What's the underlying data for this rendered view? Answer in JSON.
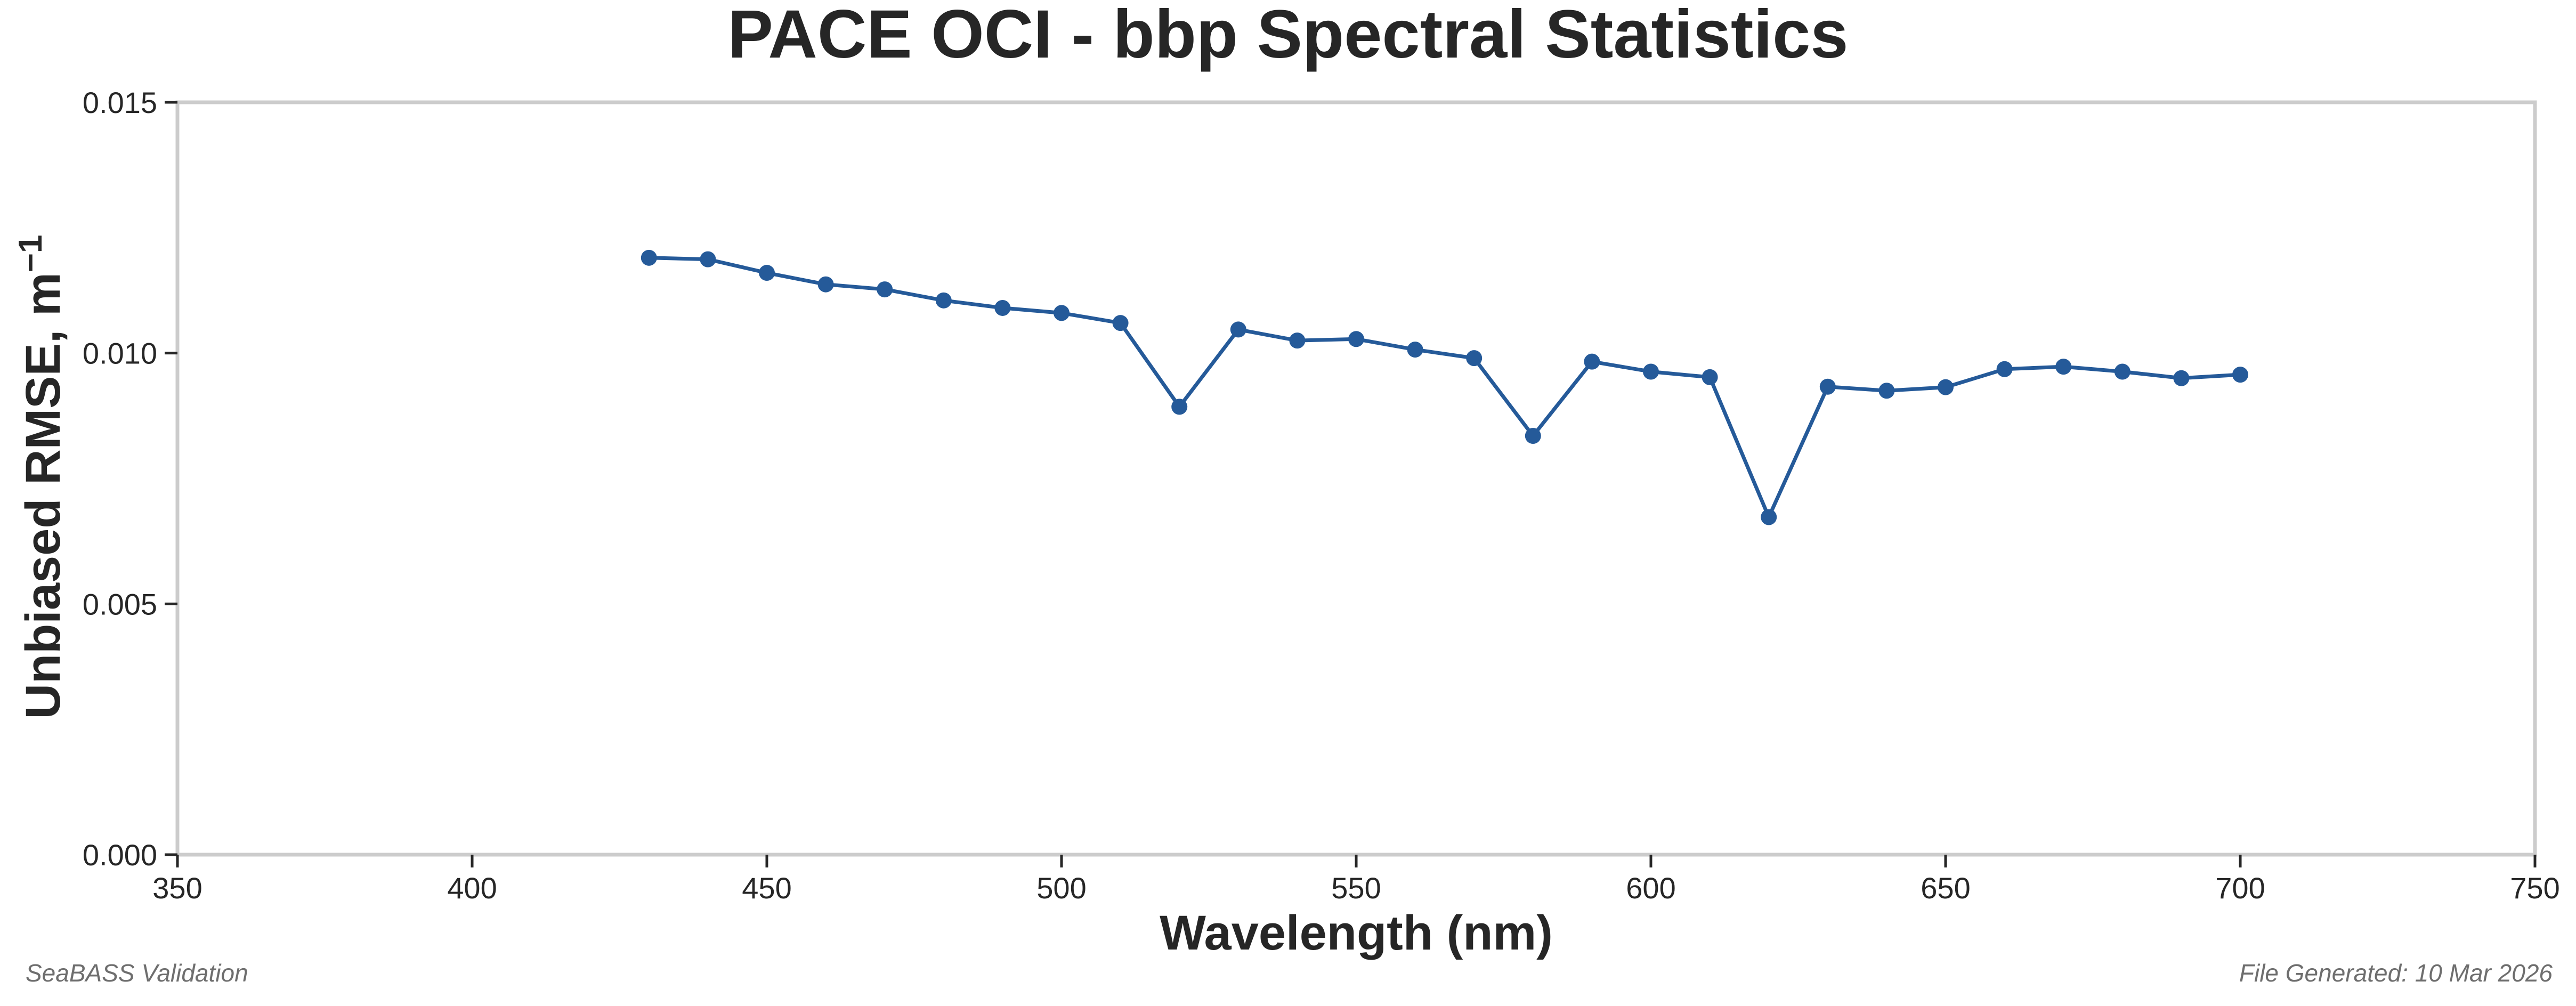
{
  "chart_data": {
    "type": "line",
    "title": "PACE OCI - bbp Spectral Statistics",
    "xlabel": "Wavelength (nm)",
    "ylabel_main": "Unbiased RMSE, m",
    "ylabel_sup": "−1",
    "xlim": [
      350,
      750
    ],
    "ylim": [
      0,
      0.015
    ],
    "xticks": [
      350,
      400,
      450,
      500,
      550,
      600,
      650,
      700,
      750
    ],
    "xtick_labels": [
      "350",
      "400",
      "450",
      "500",
      "550",
      "600",
      "650",
      "700",
      "750"
    ],
    "yticks": [
      0,
      0.005,
      0.01,
      0.015
    ],
    "ytick_labels": [
      "0.000",
      "0.005",
      "0.010",
      "0.015"
    ],
    "grid": false,
    "series": [
      {
        "name": "Unbiased RMSE",
        "color": "#255a99",
        "x": [
          430,
          440,
          450,
          460,
          470,
          480,
          490,
          500,
          510,
          520,
          530,
          540,
          550,
          560,
          570,
          580,
          590,
          600,
          610,
          620,
          630,
          640,
          650,
          660,
          670,
          680,
          690,
          700
        ],
        "values": [
          0.0119,
          0.01187,
          0.0116,
          0.01137,
          0.01127,
          0.01105,
          0.0109,
          0.0108,
          0.0106,
          0.00893,
          0.01047,
          0.01025,
          0.01028,
          0.01007,
          0.0099,
          0.00835,
          0.00983,
          0.00963,
          0.00952,
          0.00673,
          0.00933,
          0.00925,
          0.00932,
          0.00968,
          0.00973,
          0.00963,
          0.0095,
          0.00957
        ]
      }
    ]
  },
  "footer": {
    "left": "SeaBASS Validation",
    "right": "File Generated: 10 Mar 2026"
  }
}
